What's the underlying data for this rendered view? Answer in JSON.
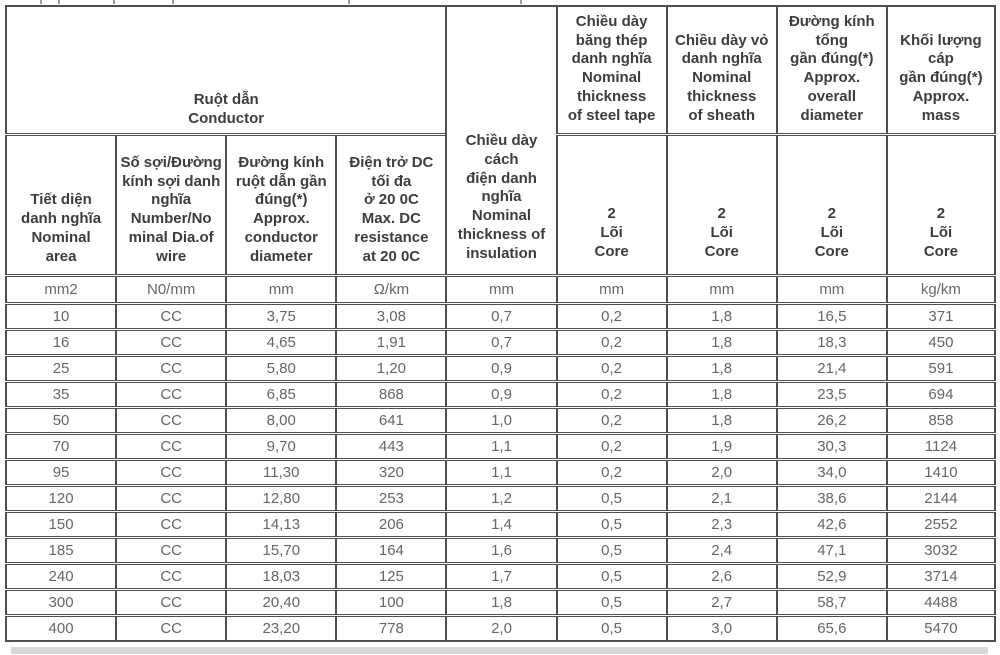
{
  "colors": {
    "border": "#4f4f4f",
    "header_text": "#3d3d3d",
    "data_text": "#666666",
    "bottom_strip": "#d9d9d9"
  },
  "table": {
    "group_header": "Ruột dẫn\nConductor",
    "headers": {
      "nominal_area": "Tiết diện\ndanh nghĩa\nNominal\narea",
      "number_dia_wire": "Số sợi/Đường\nkính sợi danh\nnghĩa\nNumber/No\nminal Dia.of\nwire",
      "conductor_diameter": "Đường kính\nruột dẫn gần\nđúng(*)\nApprox.\nconductor\ndiameter",
      "dc_resistance": "Điện trở DC\ntối đa\nở 20 0C\nMax. DC\nresistance\nat 20 0C",
      "insulation_thickness": "Chiều dày\ncách\nđiện danh\nnghĩa\nNominal\nthickness of\ninsulation",
      "steel_tape_thickness": "Chiều dày\nbăng thép\ndanh nghĩa\nNominal\nthickness\nof steel tape",
      "sheath_thickness": "Chiều dày vỏ\ndanh nghĩa\nNominal\nthickness\nof sheath",
      "overall_diameter": "Đường kính\ntổng\ngần đúng(*)\nApprox.\noverall\ndiameter",
      "approx_mass": "Khối lượng\ncáp\ngần đúng(*)\nApprox.\nmass"
    },
    "core_label": "2\nLõi\nCore",
    "units": [
      "mm2",
      "N0/mm",
      "mm",
      "Ω/km",
      "mm",
      "mm",
      "mm",
      "mm",
      "kg/km"
    ],
    "rows": [
      [
        "10",
        "CC",
        "3,75",
        "3,08",
        "0,7",
        "0,2",
        "1,8",
        "16,5",
        "371"
      ],
      [
        "16",
        "CC",
        "4,65",
        "1,91",
        "0,7",
        "0,2",
        "1,8",
        "18,3",
        "450"
      ],
      [
        "25",
        "CC",
        "5,80",
        "1,20",
        "0,9",
        "0,2",
        "1,8",
        "21,4",
        "591"
      ],
      [
        "35",
        "CC",
        "6,85",
        "868",
        "0,9",
        "0,2",
        "1,8",
        "23,5",
        "694"
      ],
      [
        "50",
        "CC",
        "8,00",
        "641",
        "1,0",
        "0,2",
        "1,8",
        "26,2",
        "858"
      ],
      [
        "70",
        "CC",
        "9,70",
        "443",
        "1,1",
        "0,2",
        "1,9",
        "30,3",
        "1124"
      ],
      [
        "95",
        "CC",
        "11,30",
        "320",
        "1,1",
        "0,2",
        "2,0",
        "34,0",
        "1410"
      ],
      [
        "120",
        "CC",
        "12,80",
        "253",
        "1,2",
        "0,5",
        "2,1",
        "38,6",
        "2144"
      ],
      [
        "150",
        "CC",
        "14,13",
        "206",
        "1,4",
        "0,5",
        "2,3",
        "42,6",
        "2552"
      ],
      [
        "185",
        "CC",
        "15,70",
        "164",
        "1,6",
        "0,5",
        "2,4",
        "47,1",
        "3032"
      ],
      [
        "240",
        "CC",
        "18,03",
        "125",
        "1,7",
        "0,5",
        "2,6",
        "52,9",
        "3714"
      ],
      [
        "300",
        "CC",
        "20,40",
        "100",
        "1,8",
        "0,5",
        "2,7",
        "58,7",
        "4488"
      ],
      [
        "400",
        "CC",
        "23,20",
        "778",
        "2,0",
        "0,5",
        "3,0",
        "65,6",
        "5470"
      ]
    ]
  }
}
